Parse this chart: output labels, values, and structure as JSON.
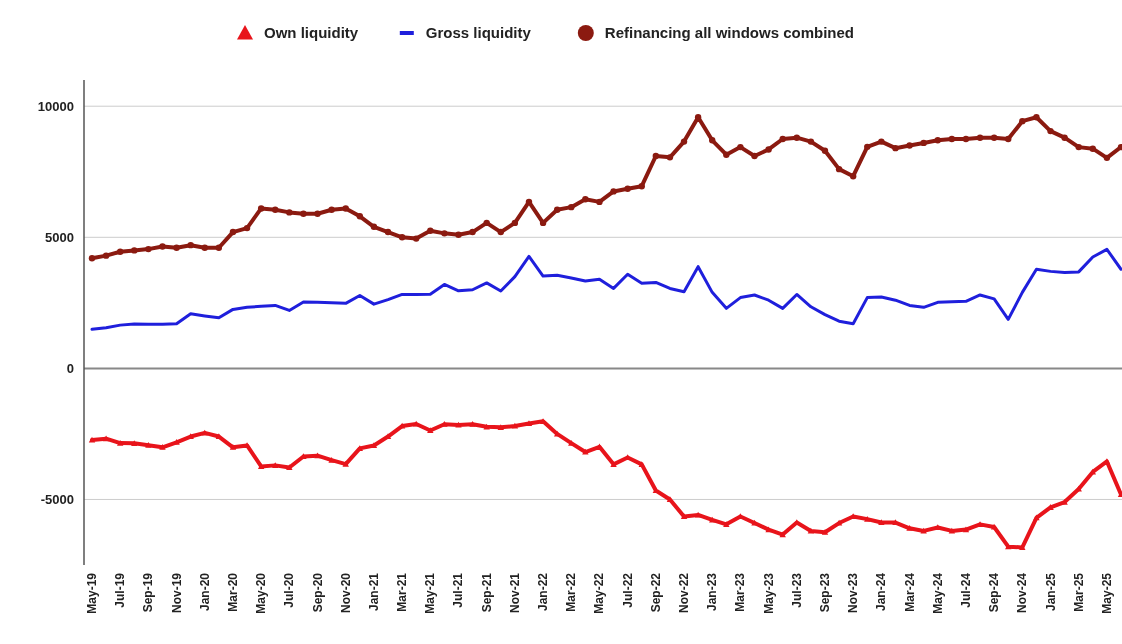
{
  "chart_data": {
    "type": "line",
    "categories": [
      "May-19",
      null,
      "Jul-19",
      null,
      "Sep-19",
      null,
      "Nov-19",
      null,
      "Jan-20",
      null,
      "Mar-20",
      null,
      "May-20",
      null,
      "Jul-20",
      null,
      "Sep-20",
      null,
      "Nov-20",
      null,
      "Jan-21",
      null,
      "Mar-21",
      null,
      "May-21",
      null,
      "Jul-21",
      null,
      "Sep-21",
      null,
      "Nov-21",
      null,
      "Jan-22",
      null,
      "Mar-22",
      null,
      "May-22",
      null,
      "Jul-22",
      null,
      "Sep-22",
      null,
      "Nov-22",
      null,
      "Jan-23",
      null,
      "Mar-23",
      null,
      "May-23",
      null,
      "Jul-23",
      null,
      "Sep-23",
      null,
      "Nov-23",
      null,
      "Jan-24",
      null,
      "Mar-24",
      null,
      "May-24",
      null,
      "Jul-24",
      null,
      "Sep-24",
      null,
      "Nov-24",
      null,
      "Jan-25",
      null,
      "Mar-25",
      null,
      "May-25",
      null
    ],
    "series": [
      {
        "name": "Own liquidity",
        "color": "#e8141b",
        "marker": "triangle",
        "values": [
          -2730,
          -2680,
          -2850,
          -2860,
          -2930,
          -3010,
          -2820,
          -2600,
          -2460,
          -2600,
          -3010,
          -2940,
          -3740,
          -3700,
          -3780,
          -3360,
          -3330,
          -3500,
          -3650,
          -3050,
          -2940,
          -2600,
          -2200,
          -2120,
          -2370,
          -2130,
          -2160,
          -2130,
          -2230,
          -2250,
          -2200,
          -2100,
          -2020,
          -2500,
          -2850,
          -3190,
          -2990,
          -3660,
          -3400,
          -3660,
          -4660,
          -5000,
          -5650,
          -5590,
          -5780,
          -5950,
          -5650,
          -5900,
          -6150,
          -6340,
          -5880,
          -6200,
          -6250,
          -5900,
          -5650,
          -5750,
          -5880,
          -5880,
          -6100,
          -6200,
          -6070,
          -6200,
          -6150,
          -5950,
          -6050,
          -6800,
          -6830,
          -5700,
          -5300,
          -5100,
          -4600,
          -3950,
          -3550,
          -4810
        ]
      },
      {
        "name": "Gross liquidity",
        "color": "#1f1fdc",
        "marker": "none",
        "values": [
          1490,
          1550,
          1650,
          1690,
          1680,
          1680,
          1700,
          2080,
          2000,
          1930,
          2250,
          2330,
          2370,
          2400,
          2210,
          2530,
          2520,
          2500,
          2480,
          2780,
          2450,
          2620,
          2820,
          2820,
          2830,
          3200,
          2960,
          3000,
          3260,
          2950,
          3500,
          4270,
          3520,
          3550,
          3450,
          3330,
          3400,
          3050,
          3590,
          3250,
          3280,
          3050,
          2920,
          3880,
          2900,
          2290,
          2700,
          2800,
          2600,
          2290,
          2820,
          2350,
          2050,
          1800,
          1700,
          2700,
          2720,
          2600,
          2400,
          2330,
          2520,
          2540,
          2560,
          2800,
          2650,
          1870,
          2900,
          3780,
          3700,
          3660,
          3680,
          4250,
          4540,
          3780
        ]
      },
      {
        "name": "Refinancing all windows combined",
        "color": "#8b1a10",
        "marker": "circle",
        "values": [
          4200,
          4300,
          4450,
          4500,
          4550,
          4650,
          4600,
          4700,
          4600,
          4600,
          5200,
          5350,
          6100,
          6050,
          5950,
          5900,
          5900,
          6050,
          6100,
          5800,
          5400,
          5200,
          5000,
          4950,
          5250,
          5150,
          5100,
          5200,
          5550,
          5200,
          5550,
          6350,
          5550,
          6050,
          6150,
          6450,
          6350,
          6750,
          6850,
          6950,
          8100,
          8050,
          8650,
          9580,
          8700,
          8150,
          8440,
          8100,
          8350,
          8750,
          8800,
          8650,
          8300,
          7600,
          7330,
          8450,
          8650,
          8400,
          8500,
          8600,
          8700,
          8750,
          8750,
          8800,
          8800,
          8750,
          9430,
          9580,
          9050,
          8800,
          8440,
          8380,
          8030,
          8440
        ]
      }
    ],
    "ylim": [
      -7500,
      11000
    ],
    "yticks": [
      10000,
      5000,
      0,
      -5000
    ],
    "grid": "y",
    "legend": "top"
  }
}
